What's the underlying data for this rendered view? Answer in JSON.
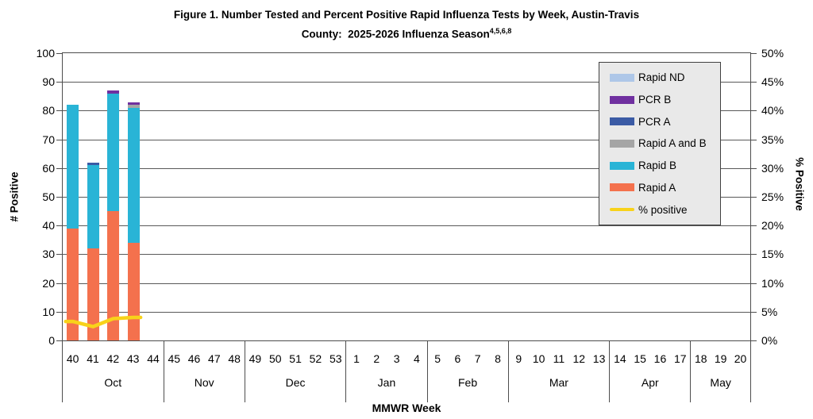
{
  "title": {
    "line1": "Figure 1. Number Tested and Percent Positive Rapid Influenza Tests by Week, Austin-Travis",
    "line2": "County:  2025-2026 Influenza Season",
    "superscript": "4,5,6,8"
  },
  "axes": {
    "left": {
      "label": "# Positive",
      "ticks": [
        "100",
        "90",
        "80",
        "70",
        "60",
        "50",
        "40",
        "30",
        "20",
        "10",
        "0"
      ]
    },
    "right": {
      "label": "% Positive",
      "ticks": [
        "50%",
        "45%",
        "40%",
        "35%",
        "30%",
        "25%",
        "20%",
        "15%",
        "10%",
        "5%",
        "0%"
      ]
    },
    "x": {
      "label": "MMWR Week"
    }
  },
  "legend": {
    "items": [
      {
        "label": "Rapid ND",
        "color": "#aec7e8",
        "swatch": "box"
      },
      {
        "label": "PCR B",
        "color": "#7030a0",
        "swatch": "box"
      },
      {
        "label": "PCR A",
        "color": "#3b5ba5",
        "swatch": "box"
      },
      {
        "label": "Rapid A and B",
        "color": "#a5a5a5",
        "swatch": "box"
      },
      {
        "label": "Rapid B",
        "color": "#29b4d6",
        "swatch": "box"
      },
      {
        "label": "Rapid A",
        "color": "#f4714d",
        "swatch": "box"
      },
      {
        "label": "% positive",
        "color": "#f8d21a",
        "swatch": "line"
      }
    ]
  },
  "chart_data": {
    "type": "bar",
    "subtype": "stacked-bars-with-line-overlay",
    "title": "Figure 1. Number Tested and Percent Positive Rapid Influenza Tests by Week, Austin-Travis County: 2025-2026 Influenza Season",
    "xlabel": "MMWR Week",
    "x_axis": {
      "month_groups": [
        {
          "month": "Oct",
          "weeks": [
            "40",
            "41",
            "42",
            "43",
            "44"
          ]
        },
        {
          "month": "Nov",
          "weeks": [
            "45",
            "46",
            "47",
            "48"
          ]
        },
        {
          "month": "Dec",
          "weeks": [
            "49",
            "50",
            "51",
            "52",
            "53"
          ]
        },
        {
          "month": "Jan",
          "weeks": [
            "1",
            "2",
            "3",
            "4"
          ]
        },
        {
          "month": "Feb",
          "weeks": [
            "5",
            "6",
            "7",
            "8"
          ]
        },
        {
          "month": "Mar",
          "weeks": [
            "9",
            "10",
            "11",
            "12",
            "13"
          ]
        },
        {
          "month": "Apr",
          "weeks": [
            "14",
            "15",
            "16",
            "17"
          ]
        },
        {
          "month": "May",
          "weeks": [
            "18",
            "19",
            "20"
          ]
        }
      ]
    },
    "y_axis_left": {
      "label": "# Positive",
      "min": 0,
      "max": 100,
      "tick_step": 10
    },
    "y_axis_right": {
      "label": "% Positive",
      "min": 0,
      "max": 50,
      "tick_step": 5,
      "format": "percent"
    },
    "grid": true,
    "legend_position": "inside-top-right",
    "stack_order_bottom_to_top": [
      "Rapid A",
      "Rapid B",
      "Rapid A and B",
      "PCR A",
      "PCR B",
      "Rapid ND"
    ],
    "bar_weeks": [
      "40",
      "41",
      "42",
      "43"
    ],
    "series": [
      {
        "name": "Rapid A",
        "color": "#f4714d",
        "values": [
          39,
          32,
          45,
          34
        ]
      },
      {
        "name": "Rapid B",
        "color": "#29b4d6",
        "values": [
          43,
          29,
          41,
          47
        ]
      },
      {
        "name": "Rapid A and B",
        "color": "#a5a5a5",
        "values": [
          0,
          0,
          0,
          1
        ]
      },
      {
        "name": "PCR A",
        "color": "#3b5ba5",
        "values": [
          0,
          1,
          0,
          0
        ]
      },
      {
        "name": "PCR B",
        "color": "#7030a0",
        "values": [
          0,
          0,
          1,
          1
        ]
      },
      {
        "name": "Rapid ND",
        "color": "#aec7e8",
        "values": [
          0,
          0,
          0,
          0
        ]
      }
    ],
    "bar_totals": [
      82,
      62,
      87,
      83
    ],
    "line_series": {
      "name": "% positive",
      "color": "#f8d21a",
      "weeks": [
        "40",
        "41",
        "42",
        "43"
      ],
      "values_percent": [
        3.3,
        2.4,
        3.8,
        4.0
      ]
    }
  }
}
